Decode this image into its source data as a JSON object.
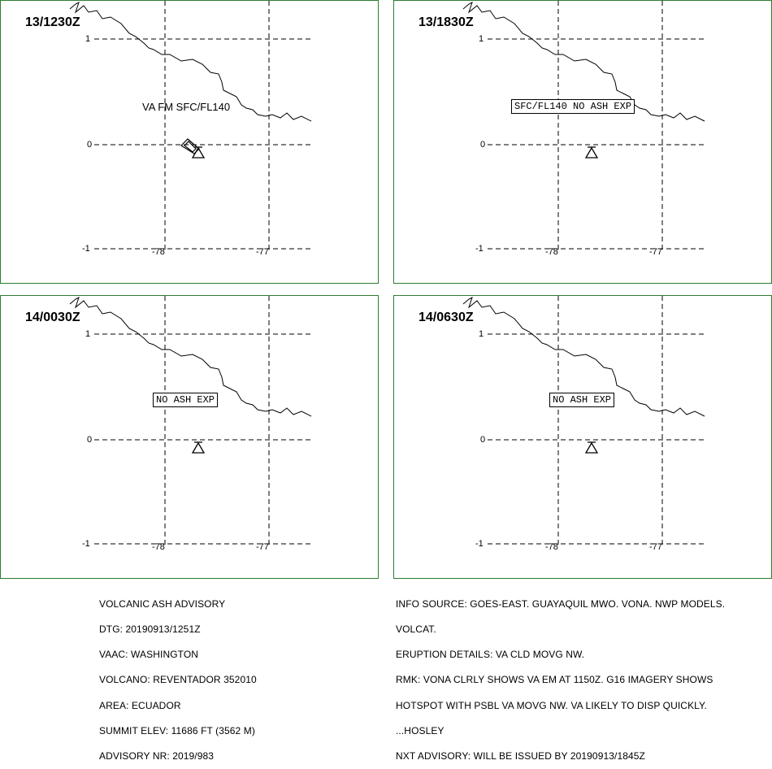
{
  "panels": [
    {
      "time": "13/1230Z",
      "annotation": "VA FM SFC/FL140",
      "annotation_style": "plain"
    },
    {
      "time": "13/1830Z",
      "annotation": "SFC/FL140 NO ASH EXP",
      "annotation_style": "boxed"
    },
    {
      "time": "14/0030Z",
      "annotation": "NO ASH EXP",
      "annotation_style": "boxed"
    },
    {
      "time": "14/0630Z",
      "annotation": "NO ASH EXP",
      "annotation_style": "boxed"
    }
  ],
  "axis_labels": {
    "lat_top": "1",
    "lat_mid": "0",
    "lat_bot": "-1",
    "lon_left": "-78",
    "lon_right": "-77"
  },
  "advisory_left": [
    "VOLCANIC ASH ADVISORY",
    "DTG: 20190913/1251Z",
    "VAAC: WASHINGTON",
    "VOLCANO: REVENTADOR 352010",
    "AREA: ECUADOR",
    "SUMMIT ELEV: 11686 FT (3562 M)",
    "ADVISORY NR: 2019/983"
  ],
  "advisory_right": [
    "INFO SOURCE: GOES-EAST. GUAYAQUIL MWO. VONA. NWP MODELS.",
    "VOLCAT.",
    "ERUPTION DETAILS: VA CLD MOVG NW.",
    "RMK: VONA CLRLY SHOWS VA EM AT 1150Z. G16 IMAGERY SHOWS",
    "HOTSPOT WITH PSBL VA MOVG NW. VA LIKELY TO DISP QUICKLY.",
    "...HOSLEY",
    "NXT ADVISORY: WILL BE ISSUED BY 20190913/1845Z"
  ],
  "colors": {
    "frame": "#2e7d2e",
    "lines": "#000000"
  }
}
